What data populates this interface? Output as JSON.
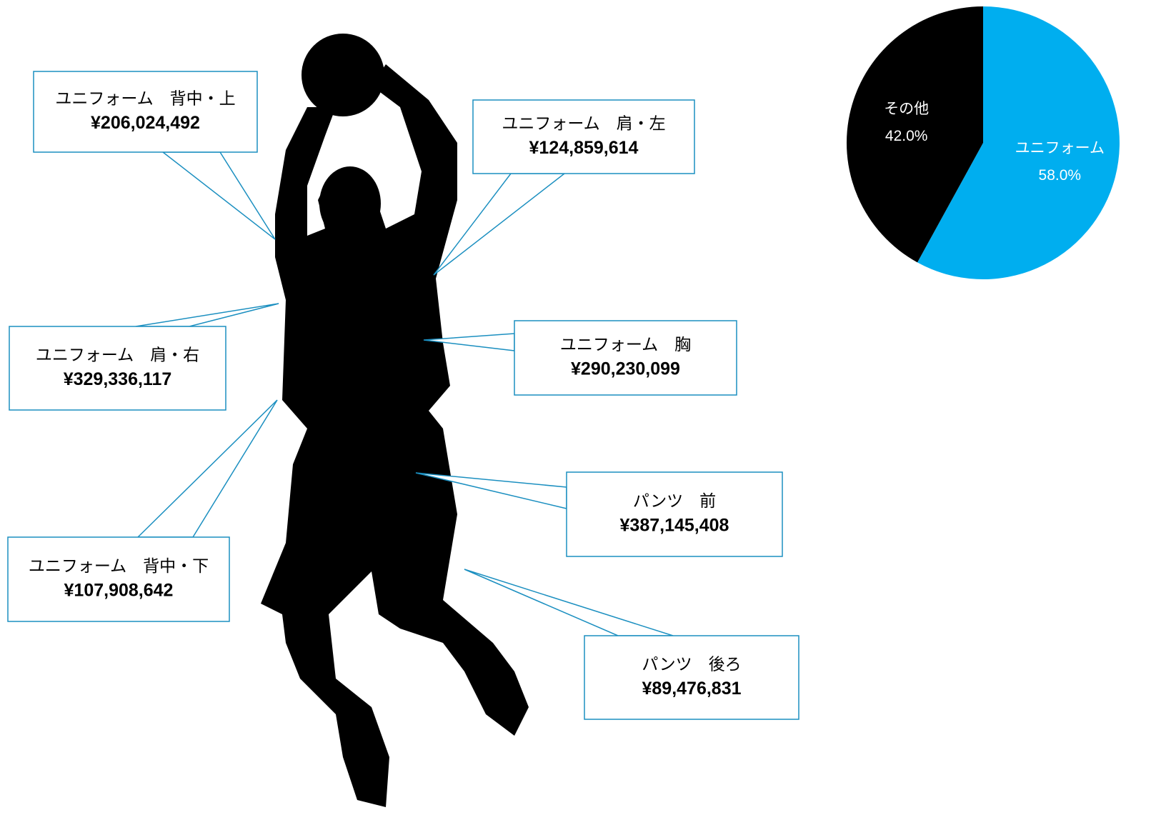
{
  "callouts": [
    {
      "label": "ユニフォーム　背中・上",
      "value": "¥206,024,492"
    },
    {
      "label": "ユニフォーム　肩・左",
      "value": "¥124,859,614"
    },
    {
      "label": "ユニフォーム　肩・右",
      "value": "¥329,336,117"
    },
    {
      "label": "ユニフォーム　胸",
      "value": "¥290,230,099"
    },
    {
      "label": "ユニフォーム　背中・下",
      "value": "¥107,908,642"
    },
    {
      "label": "パンツ　前",
      "value": "¥387,145,408"
    },
    {
      "label": "パンツ　後ろ",
      "value": "¥89,476,831"
    }
  ],
  "chart_data": {
    "type": "pie",
    "categories": [
      "ユニフォーム",
      "その他"
    ],
    "values": [
      58.0,
      42.0
    ],
    "value_labels": [
      "58.0%",
      "42.0%"
    ],
    "colors": [
      "#00aeef",
      "#000000"
    ]
  }
}
